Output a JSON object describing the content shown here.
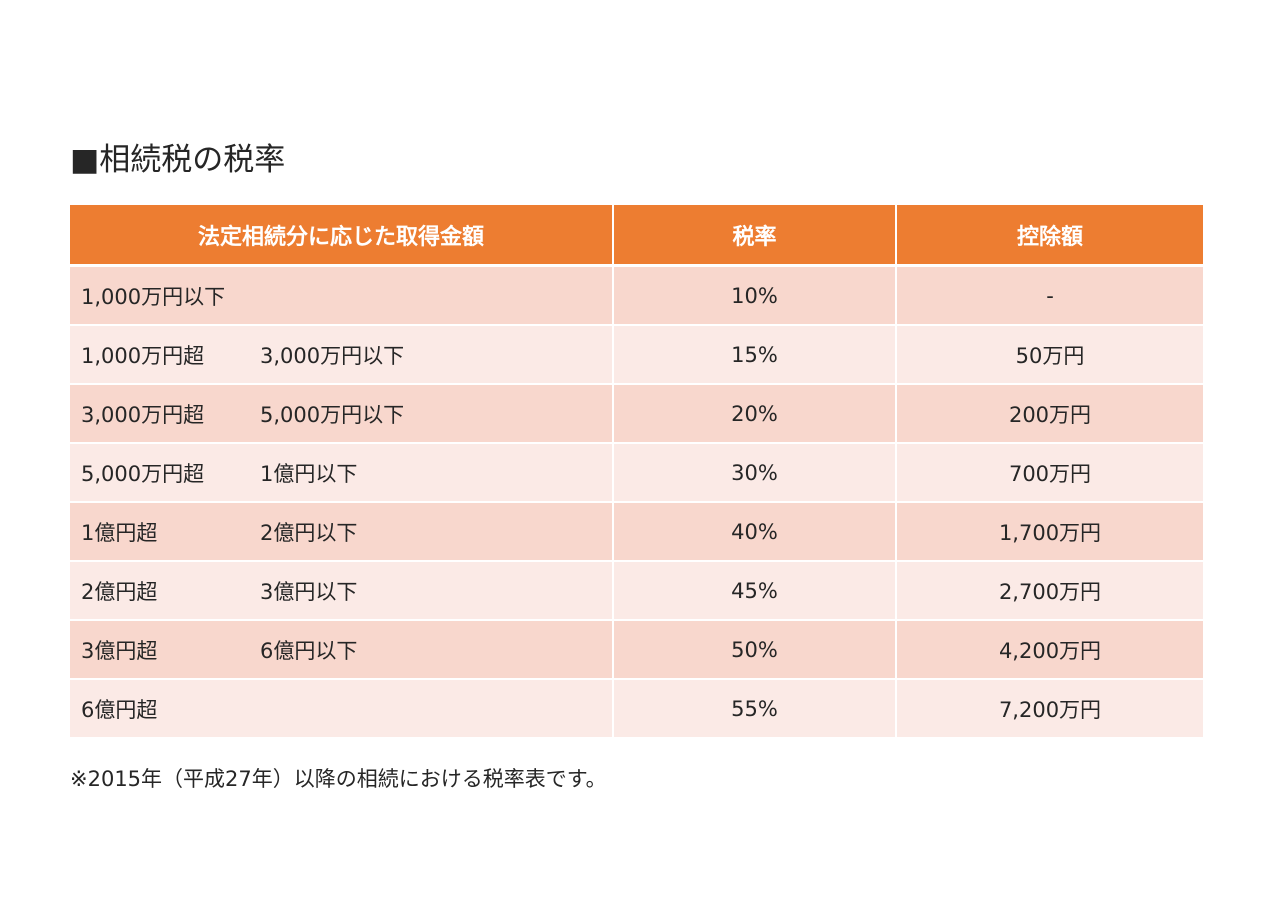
{
  "title": "■相続税の税率",
  "table": {
    "headers": [
      "法定相続分に応じた取得金額",
      "税率",
      "控除額"
    ],
    "rows": [
      {
        "from": "1,000万円以下",
        "to": "",
        "rate": "10%",
        "deduction": "-"
      },
      {
        "from": "1,000万円超",
        "to": "3,000万円以下",
        "rate": "15%",
        "deduction": "50万円"
      },
      {
        "from": "3,000万円超",
        "to": "5,000万円以下",
        "rate": "20%",
        "deduction": "200万円"
      },
      {
        "from": "5,000万円超",
        "to": "1億円以下",
        "rate": "30%",
        "deduction": "700万円"
      },
      {
        "from": "1億円超",
        "to": "2億円以下",
        "rate": "40%",
        "deduction": "1,700万円"
      },
      {
        "from": "2億円超",
        "to": "3億円以下",
        "rate": "45%",
        "deduction": "2,700万円"
      },
      {
        "from": "3億円超",
        "to": "6億円以下",
        "rate": "50%",
        "deduction": "4,200万円"
      },
      {
        "from": "6億円超",
        "to": "",
        "rate": "55%",
        "deduction": "7,200万円"
      }
    ]
  },
  "note": "※2015年（平成27年）以降の相続における税率表です。",
  "colors": {
    "header_bg": "#ed7d31",
    "row_dark": "#f8d7cd",
    "row_light": "#fbeae6"
  }
}
